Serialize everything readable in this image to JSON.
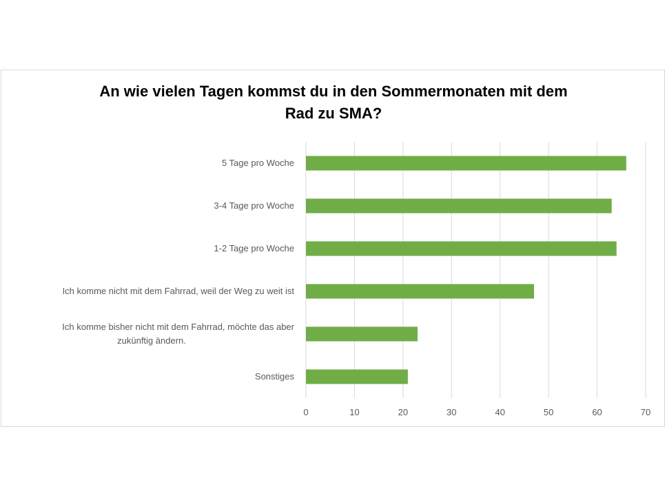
{
  "chart_data": {
    "type": "bar",
    "orientation": "horizontal",
    "title_lines": [
      "An wie vielen Tagen kommst du in den Sommermonaten mit dem",
      "Rad zu SMA?"
    ],
    "categories": [
      [
        "5 Tage pro Woche"
      ],
      [
        "3-4 Tage pro Woche"
      ],
      [
        "1-2 Tage pro Woche"
      ],
      [
        "Ich komme nicht mit dem Fahrrad, weil der Weg zu weit ist"
      ],
      [
        "Ich komme bisher nicht mit dem Fahrrad, möchte das aber",
        "zukünftig ändern."
      ],
      [
        "Sonstiges"
      ]
    ],
    "values": [
      66,
      63,
      64,
      47,
      23,
      21
    ],
    "xlim": [
      0,
      70
    ],
    "xticks": [
      "0",
      "10",
      "20",
      "30",
      "40",
      "50",
      "60",
      "70"
    ],
    "grid": true,
    "bar_color": "#70ad47",
    "grid_color": "#d9d9d9",
    "label_color": "#595959"
  }
}
